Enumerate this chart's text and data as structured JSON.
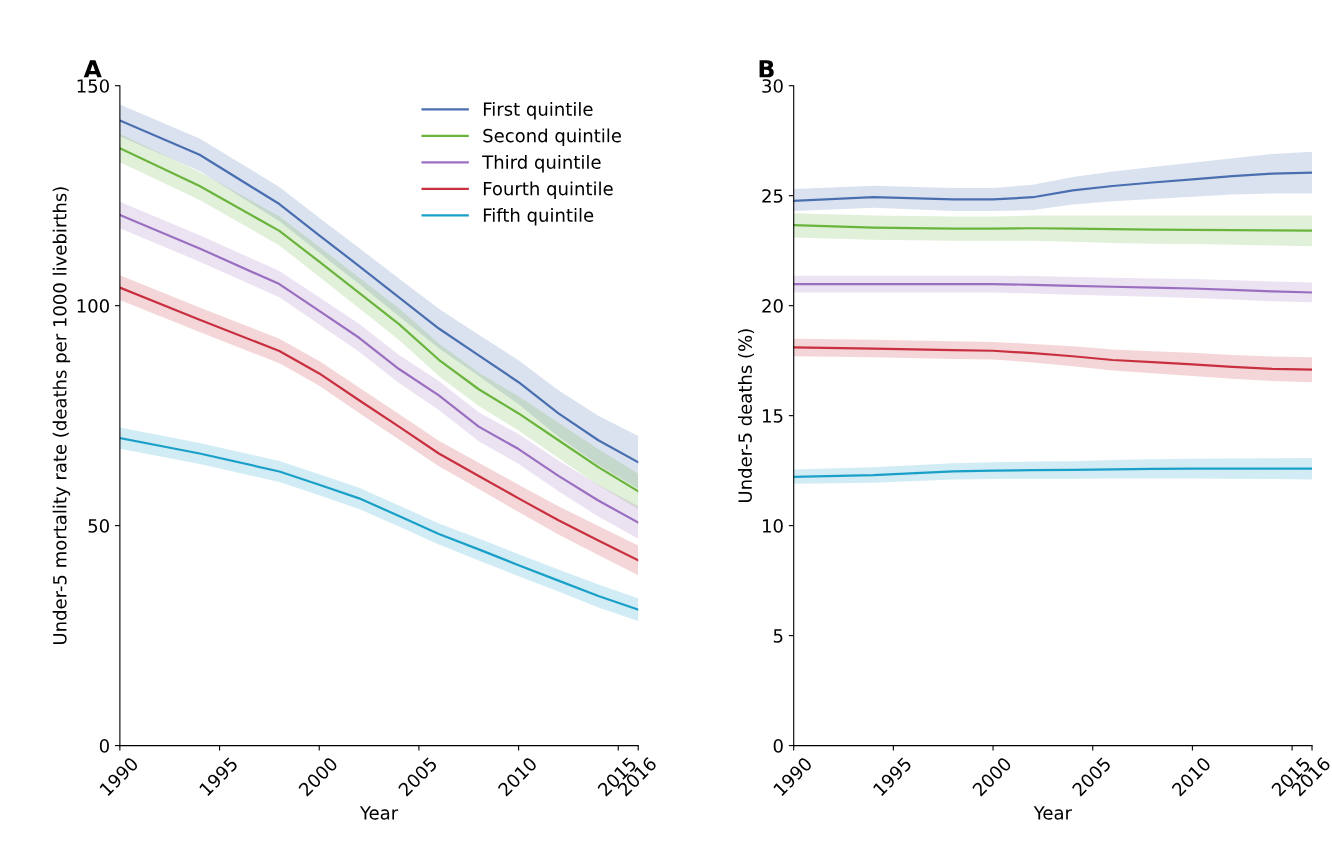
{
  "chart_data": [
    {
      "type": "line",
      "title": "A",
      "xlabel": "Year",
      "ylabel": "Under-5 mortality rate (deaths per 1000 livebirths)",
      "x": [
        1990,
        1994,
        1998,
        2000,
        2002,
        2004,
        2006,
        2008,
        2010,
        2012,
        2014,
        2016
      ],
      "xlim": [
        1990,
        2016
      ],
      "xticks": [
        1990,
        1995,
        2000,
        2005,
        2010,
        2015,
        2016
      ],
      "ylim": [
        0,
        150
      ],
      "yticks": [
        0,
        50,
        100,
        150
      ],
      "grid": false,
      "legend": "top right",
      "series": [
        {
          "name": "First quintile",
          "color": "#4a6fb0",
          "values": [
            142.1,
            134.3,
            123.1,
            116,
            109,
            101.9,
            94.8,
            88.7,
            82.6,
            75.5,
            69.4,
            64.4
          ],
          "lower": [
            138.5,
            130.6,
            119.2,
            112,
            104.9,
            97.6,
            90.3,
            84,
            77.6,
            70.2,
            63.8,
            58.4
          ],
          "upper": [
            145.7,
            138,
            127,
            120,
            113.1,
            106.2,
            99.3,
            93.4,
            87.6,
            80.8,
            75,
            70.4
          ]
        },
        {
          "name": "Second quintile",
          "color": "#6ab43e",
          "values": [
            135.8,
            127.2,
            117,
            110,
            102.9,
            95.8,
            87.7,
            81,
            75.5,
            69.4,
            63.3,
            57.8
          ],
          "lower": [
            132.6,
            124,
            113.7,
            106.6,
            99.4,
            92.2,
            84,
            77.2,
            71.6,
            65.4,
            59.2,
            53.8
          ],
          "upper": [
            139,
            130.4,
            120.3,
            113.4,
            106.4,
            99.4,
            91.4,
            84.8,
            79.4,
            73.4,
            67.4,
            61.8
          ]
        },
        {
          "name": "Third quintile",
          "color": "#9b6fc0",
          "values": [
            120.6,
            113,
            104.9,
            98.8,
            92.7,
            85.6,
            79.6,
            72.5,
            67.4,
            61.3,
            55.7,
            50.7
          ],
          "lower": [
            117.6,
            110,
            101.9,
            95.7,
            89.5,
            82.4,
            76.3,
            69.2,
            64,
            57.8,
            52.1,
            47
          ],
          "upper": [
            123.6,
            116,
            107.9,
            101.9,
            95.9,
            88.8,
            82.9,
            75.8,
            70.8,
            64.8,
            59.3,
            54.4
          ]
        },
        {
          "name": "Fourth quintile",
          "color": "#c8303f",
          "values": [
            104.1,
            96.8,
            89.7,
            84.6,
            78.5,
            72.5,
            66.4,
            61.3,
            56.2,
            51.2,
            46.6,
            42.1
          ],
          "lower": [
            101.3,
            94,
            86.9,
            81.8,
            75.6,
            69.6,
            63.5,
            58.3,
            53.1,
            48,
            43.3,
            38.7
          ],
          "upper": [
            106.9,
            99.6,
            92.5,
            87.4,
            81.4,
            75.4,
            69.3,
            64.3,
            59.3,
            54.4,
            49.9,
            45.5
          ]
        },
        {
          "name": "Fifth quintile",
          "color": "#1aa0c8",
          "values": [
            69.9,
            66.4,
            62.3,
            59.3,
            56.2,
            52.2,
            48.1,
            44.6,
            41,
            37.5,
            34,
            30.9
          ],
          "lower": [
            67.5,
            64,
            59.9,
            56.9,
            53.8,
            49.8,
            45.7,
            42.1,
            38.5,
            35,
            31.4,
            28.3
          ],
          "upper": [
            72.3,
            68.8,
            64.7,
            61.7,
            58.6,
            54.6,
            50.5,
            47.1,
            43.5,
            40,
            36.6,
            33.5
          ]
        }
      ]
    },
    {
      "type": "line",
      "title": "B",
      "xlabel": "Year",
      "ylabel": "Under-5 deaths (%)",
      "x": [
        1990,
        1994,
        1998,
        2000,
        2002,
        2004,
        2006,
        2008,
        2010,
        2012,
        2014,
        2016
      ],
      "xlim": [
        1990,
        2016
      ],
      "xticks": [
        1990,
        1995,
        2000,
        2005,
        2010,
        2015,
        2016
      ],
      "ylim": [
        0,
        30
      ],
      "yticks": [
        0,
        5,
        10,
        15,
        20,
        25,
        30
      ],
      "grid": false,
      "series": [
        {
          "color": "#4a6fb0",
          "values": [
            24.77,
            24.93,
            24.83,
            24.83,
            24.93,
            25.24,
            25.44,
            25.6,
            25.74,
            25.89,
            26,
            26.05
          ],
          "lower": [
            24.3,
            24.45,
            24.3,
            24.3,
            24.35,
            24.6,
            24.75,
            24.85,
            24.95,
            25.05,
            25.1,
            25.1
          ],
          "upper": [
            25.3,
            25.45,
            25.35,
            25.35,
            25.5,
            25.85,
            26.1,
            26.3,
            26.5,
            26.7,
            26.9,
            27
          ]
        },
        {
          "color": "#6ab43e",
          "values": [
            23.66,
            23.55,
            23.5,
            23.5,
            23.52,
            23.5,
            23.48,
            23.46,
            23.45,
            23.43,
            23.42,
            23.41
          ],
          "lower": [
            23.1,
            23,
            22.95,
            22.95,
            22.95,
            22.9,
            22.85,
            22.82,
            22.8,
            22.77,
            22.74,
            22.7
          ],
          "upper": [
            24.2,
            24.1,
            24.05,
            24.05,
            24.1,
            24.1,
            24.1,
            24.1,
            24.1,
            24.1,
            24.1,
            24.1
          ]
        },
        {
          "color": "#9b6fc0",
          "values": [
            20.98,
            20.98,
            20.98,
            20.98,
            20.95,
            20.9,
            20.86,
            20.82,
            20.78,
            20.72,
            20.65,
            20.6
          ],
          "lower": [
            20.6,
            20.6,
            20.6,
            20.6,
            20.55,
            20.5,
            20.45,
            20.4,
            20.35,
            20.28,
            20.2,
            20.15
          ],
          "upper": [
            21.36,
            21.36,
            21.36,
            21.36,
            21.35,
            21.3,
            21.27,
            21.24,
            21.21,
            21.16,
            21.1,
            21.05
          ]
        },
        {
          "color": "#c8303f",
          "values": [
            18.1,
            18.05,
            17.98,
            17.95,
            17.84,
            17.7,
            17.53,
            17.43,
            17.33,
            17.22,
            17.13,
            17.09
          ],
          "lower": [
            17.7,
            17.65,
            17.58,
            17.55,
            17.42,
            17.25,
            17.05,
            16.93,
            16.8,
            16.68,
            16.57,
            16.52
          ],
          "upper": [
            18.5,
            18.45,
            18.38,
            18.35,
            18.26,
            18.15,
            18.01,
            17.93,
            17.86,
            17.76,
            17.69,
            17.66
          ]
        },
        {
          "color": "#1aa0c8",
          "values": [
            12.22,
            12.3,
            12.47,
            12.5,
            12.52,
            12.53,
            12.56,
            12.58,
            12.59,
            12.59,
            12.59,
            12.59
          ],
          "lower": [
            11.9,
            11.95,
            12.1,
            12.12,
            12.13,
            12.13,
            12.14,
            12.14,
            12.14,
            12.13,
            12.12,
            12.1
          ],
          "upper": [
            12.55,
            12.65,
            12.84,
            12.88,
            12.91,
            12.93,
            12.98,
            13.02,
            13.04,
            13.05,
            13.06,
            13.08
          ]
        }
      ]
    }
  ]
}
